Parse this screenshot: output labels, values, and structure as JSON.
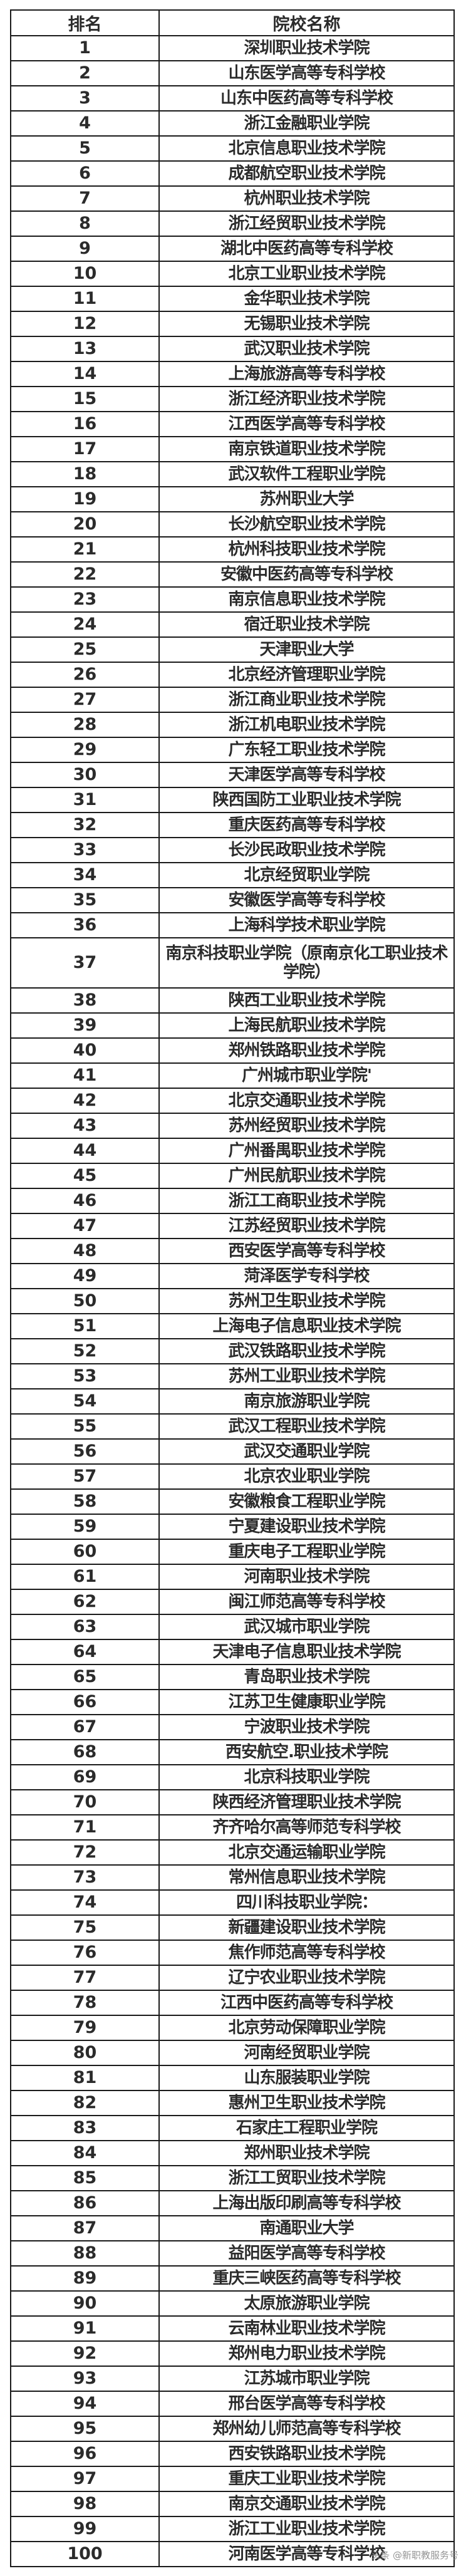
{
  "table": {
    "headers": {
      "rank": "排名",
      "name": "院校名称"
    },
    "rows": [
      {
        "rank": "1",
        "name": "深圳职业技术学院"
      },
      {
        "rank": "2",
        "name": "山东医学高等专科学校"
      },
      {
        "rank": "3",
        "name": "山东中医药高等专科学校"
      },
      {
        "rank": "4",
        "name": "浙江金融职业学院"
      },
      {
        "rank": "5",
        "name": "北京信息职业技术学院"
      },
      {
        "rank": "6",
        "name": "成都航空职业技术学院"
      },
      {
        "rank": "7",
        "name": "杭州职业技术学院"
      },
      {
        "rank": "8",
        "name": "浙江经贸职业技术学院"
      },
      {
        "rank": "9",
        "name": "湖北中医药高等专科学校"
      },
      {
        "rank": "10",
        "name": "北京工业职业技术学院"
      },
      {
        "rank": "11",
        "name": "金华职业技术学院"
      },
      {
        "rank": "12",
        "name": "无锡职业技术学院"
      },
      {
        "rank": "13",
        "name": "武汉职业技术学院"
      },
      {
        "rank": "14",
        "name": "上海旅游高等专科学校"
      },
      {
        "rank": "15",
        "name": "浙江经济职业技术学院"
      },
      {
        "rank": "16",
        "name": "江西医学高等专科学校"
      },
      {
        "rank": "17",
        "name": "南京铁道职业技术学院"
      },
      {
        "rank": "18",
        "name": "武汉软件工程职业学院"
      },
      {
        "rank": "19",
        "name": "苏州职业大学"
      },
      {
        "rank": "20",
        "name": "长沙航空职业技术学院"
      },
      {
        "rank": "21",
        "name": "杭州科技职业技术学院"
      },
      {
        "rank": "22",
        "name": "安徽中医药高等专科学校"
      },
      {
        "rank": "23",
        "name": "南京信息职业技术学院"
      },
      {
        "rank": "24",
        "name": "宿迁职业技术学院"
      },
      {
        "rank": "25",
        "name": "天津职业大学"
      },
      {
        "rank": "26",
        "name": "北京经济管理职业学院"
      },
      {
        "rank": "27",
        "name": "浙江商业职业技术学院"
      },
      {
        "rank": "28",
        "name": "浙江机电职业技术学院"
      },
      {
        "rank": "29",
        "name": "广东轻工职业技术学院"
      },
      {
        "rank": "30",
        "name": "天津医学高等专科学校"
      },
      {
        "rank": "31",
        "name": "陕西国防工业职业技术学院"
      },
      {
        "rank": "32",
        "name": "重庆医药高等专科学校"
      },
      {
        "rank": "33",
        "name": "长沙民政职业技术学院"
      },
      {
        "rank": "34",
        "name": "北京经贸职业学院"
      },
      {
        "rank": "35",
        "name": "安徽医学高等专科学校"
      },
      {
        "rank": "36",
        "name": "上海科学技术职业学院"
      },
      {
        "rank": "37",
        "name": "南京科技职业学院（原南京化工职业技术学院）"
      },
      {
        "rank": "38",
        "name": "陕西工业职业技术学院"
      },
      {
        "rank": "39",
        "name": "上海民航职业技术学院"
      },
      {
        "rank": "40",
        "name": "郑州铁路职业技术学院"
      },
      {
        "rank": "41",
        "name": "广州城市职业学院'"
      },
      {
        "rank": "42",
        "name": "北京交通职业技术学院"
      },
      {
        "rank": "43",
        "name": "苏州经贸职业技术学院"
      },
      {
        "rank": "44",
        "name": "广州番禺职业技术学院"
      },
      {
        "rank": "45",
        "name": "广州民航职业技术学院"
      },
      {
        "rank": "46",
        "name": "浙江工商职业技术学院"
      },
      {
        "rank": "47",
        "name": "江苏经贸职业技术学院"
      },
      {
        "rank": "48",
        "name": "西安医学高等专科学校"
      },
      {
        "rank": "49",
        "name": "菏泽医学专科学校"
      },
      {
        "rank": "50",
        "name": "苏州卫生职业技术学院"
      },
      {
        "rank": "51",
        "name": "上海电子信息职业技术学院"
      },
      {
        "rank": "52",
        "name": "武汉铁路职业技术学院"
      },
      {
        "rank": "53",
        "name": "苏州工业职业技术学院"
      },
      {
        "rank": "54",
        "name": "南京旅游职业学院"
      },
      {
        "rank": "55",
        "name": "武汉工程职业技术学院"
      },
      {
        "rank": "56",
        "name": "武汉交通职业学院"
      },
      {
        "rank": "57",
        "name": "北京农业职业学院"
      },
      {
        "rank": "58",
        "name": "安徽粮食工程职业学院"
      },
      {
        "rank": "59",
        "name": "宁夏建设职业技术学院"
      },
      {
        "rank": "60",
        "name": "重庆电子工程职业学院"
      },
      {
        "rank": "61",
        "name": "河南职业技术学院"
      },
      {
        "rank": "62",
        "name": "闽江师范高等专科学校"
      },
      {
        "rank": "63",
        "name": "武汉城市职业学院"
      },
      {
        "rank": "64",
        "name": "天津电子信息职业技术学院"
      },
      {
        "rank": "65",
        "name": "青岛职业技术学院"
      },
      {
        "rank": "66",
        "name": "江苏卫生健康职业学院"
      },
      {
        "rank": "67",
        "name": "宁波职业技术学院"
      },
      {
        "rank": "68",
        "name": "西安航空.职业技术学院"
      },
      {
        "rank": "69",
        "name": "北京科技职业学院"
      },
      {
        "rank": "70",
        "name": "陕西经济管理职业技术学院"
      },
      {
        "rank": "71",
        "name": "齐齐哈尔高等师范专科学校"
      },
      {
        "rank": "72",
        "name": "北京交通运输职业学院"
      },
      {
        "rank": "73",
        "name": "常州信息职业技术学院"
      },
      {
        "rank": "74",
        "name": "四川科技职业学院："
      },
      {
        "rank": "75",
        "name": "新疆建设职业技术学院"
      },
      {
        "rank": "76",
        "name": "焦作师范高等专科学校"
      },
      {
        "rank": "77",
        "name": "辽宁农业职业技术学院"
      },
      {
        "rank": "78",
        "name": "江西中医药高等专科学校"
      },
      {
        "rank": "79",
        "name": "北京劳动保障职业学院"
      },
      {
        "rank": "80",
        "name": "河南经贸职业学院"
      },
      {
        "rank": "81",
        "name": "山东服装职业学院"
      },
      {
        "rank": "82",
        "name": "惠州卫生职业技术学院"
      },
      {
        "rank": "83",
        "name": "石家庄工程职业学院"
      },
      {
        "rank": "84",
        "name": "郑州职业技术学院"
      },
      {
        "rank": "85",
        "name": "浙江工贸职业技术学院"
      },
      {
        "rank": "86",
        "name": "上海出版印刷高等专科学校"
      },
      {
        "rank": "87",
        "name": "南通职业大学"
      },
      {
        "rank": "88",
        "name": "益阳医学高等专科学校"
      },
      {
        "rank": "89",
        "name": "重庆三峡医药高等专科学校"
      },
      {
        "rank": "90",
        "name": "太原旅游职业学院"
      },
      {
        "rank": "91",
        "name": "云南林业职业技术学院"
      },
      {
        "rank": "92",
        "name": "郑州电力职业技术学院"
      },
      {
        "rank": "93",
        "name": "江苏城市职业学院"
      },
      {
        "rank": "94",
        "name": "邢台医学高等专科学校"
      },
      {
        "rank": "95",
        "name": "郑州幼儿师范高等专科学校"
      },
      {
        "rank": "96",
        "name": "西安铁路职业技术学院"
      },
      {
        "rank": "97",
        "name": "重庆工业职业技术学院"
      },
      {
        "rank": "98",
        "name": "南京交通职业技术学院"
      },
      {
        "rank": "99",
        "name": "浙江工业职业技术学院"
      },
      {
        "rank": "100",
        "name": "河南医学高等专科学校"
      }
    ]
  },
  "watermark": "头条 @新职教服务号"
}
